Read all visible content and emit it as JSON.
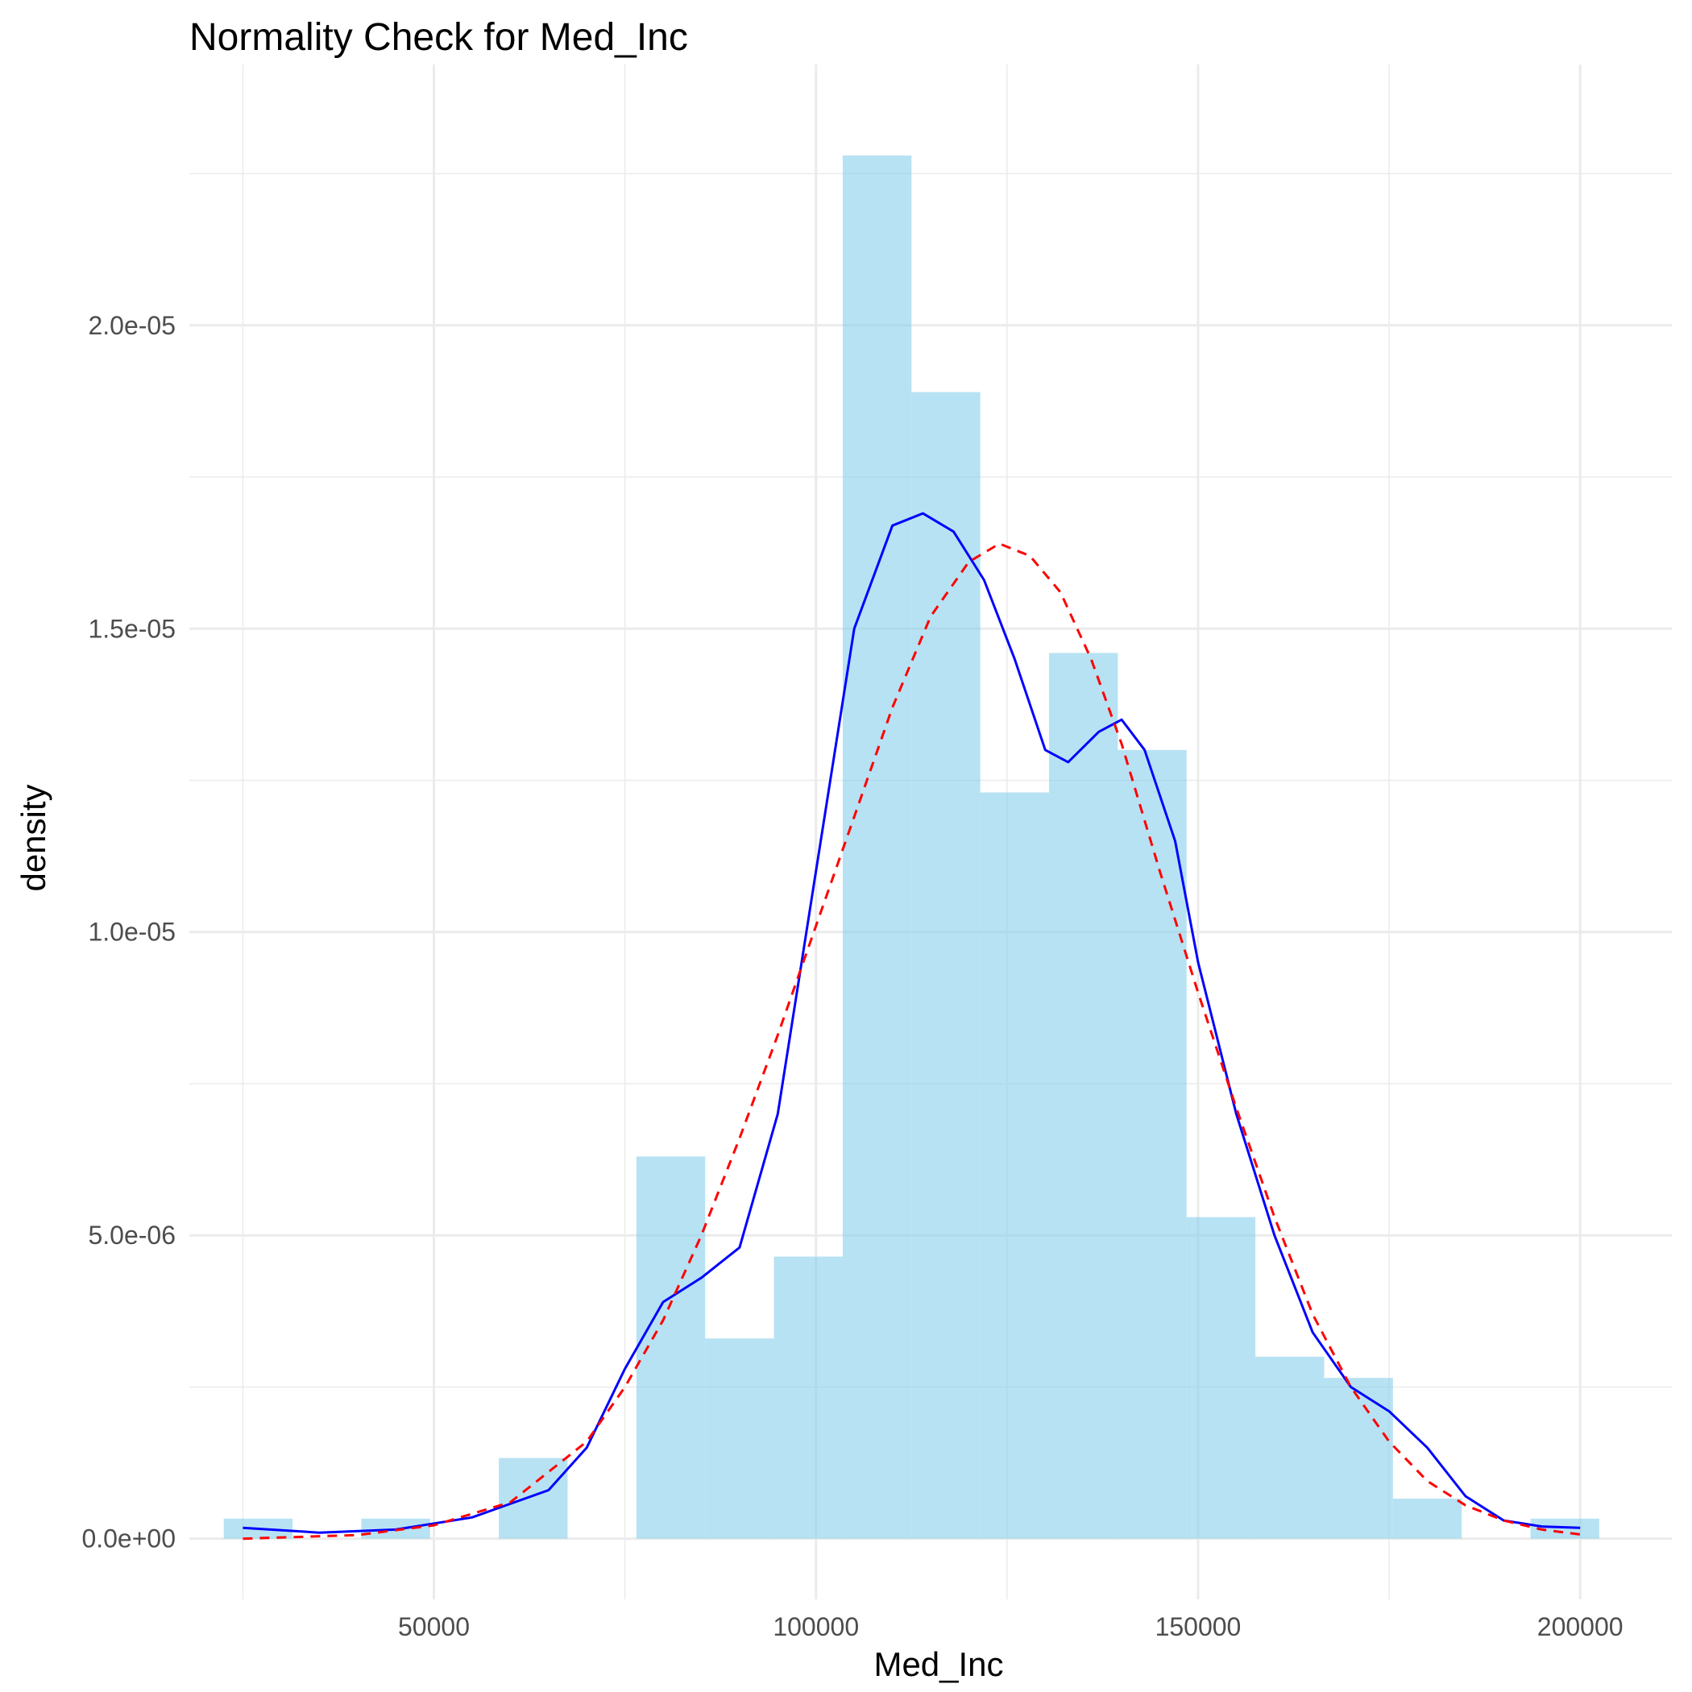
{
  "chart_data": {
    "type": "bar",
    "title": "Normality Check for Med_Inc",
    "xlabel": "Med_Inc",
    "ylabel": "density",
    "xlim": [
      18000,
      212000
    ],
    "ylim": [
      -1e-06,
      2.43e-05
    ],
    "x_ticks": [
      50000,
      100000,
      150000,
      200000
    ],
    "x_tick_labels": [
      "50000",
      "100000",
      "150000",
      "200000"
    ],
    "y_ticks": [
      0,
      5e-06,
      1e-05,
      1.5e-05,
      2e-05
    ],
    "y_tick_labels": [
      "0.0e+00",
      "5.0e-06",
      "1.0e-05",
      "1.5e-05",
      "2.0e-05"
    ],
    "grid": true,
    "histogram": {
      "fill_color": "#87CEEB",
      "bins": [
        {
          "x0": 22500,
          "x1": 31500,
          "density": 3.3e-07
        },
        {
          "x0": 31500,
          "x1": 40500,
          "density": 0
        },
        {
          "x0": 40500,
          "x1": 49500,
          "density": 3.3e-07
        },
        {
          "x0": 49500,
          "x1": 58500,
          "density": 0
        },
        {
          "x0": 58500,
          "x1": 67500,
          "density": 1.33e-06
        },
        {
          "x0": 67500,
          "x1": 76500,
          "density": 0
        },
        {
          "x0": 76500,
          "x1": 85500,
          "density": 6.3e-06
        },
        {
          "x0": 85500,
          "x1": 94500,
          "density": 3.3e-06
        },
        {
          "x0": 94500,
          "x1": 103500,
          "density": 4.65e-06
        },
        {
          "x0": 103500,
          "x1": 112500,
          "density": 2.28e-05
        },
        {
          "x0": 112500,
          "x1": 121500,
          "density": 1.89e-05
        },
        {
          "x0": 121500,
          "x1": 130500,
          "density": 1.23e-05
        },
        {
          "x0": 130500,
          "x1": 139500,
          "density": 1.46e-05
        },
        {
          "x0": 139500,
          "x1": 148500,
          "density": 1.3e-05
        },
        {
          "x0": 148500,
          "x1": 157500,
          "density": 5.3e-06
        },
        {
          "x0": 157500,
          "x1": 166500,
          "density": 3e-06
        },
        {
          "x0": 166500,
          "x1": 175500,
          "density": 2.65e-06
        },
        {
          "x0": 175500,
          "x1": 184500,
          "density": 6.6e-07
        },
        {
          "x0": 184500,
          "x1": 193500,
          "density": 0
        },
        {
          "x0": 193500,
          "x1": 202500,
          "density": 3.3e-07
        }
      ]
    },
    "series": [
      {
        "type": "line",
        "color": "#0000FF",
        "style": "solid",
        "points": [
          [
            25000,
            1.8e-07
          ],
          [
            35000,
            1e-07
          ],
          [
            45000,
            1.5e-07
          ],
          [
            55000,
            3.5e-07
          ],
          [
            65000,
            8e-07
          ],
          [
            70000,
            1.5e-06
          ],
          [
            75000,
            2.8e-06
          ],
          [
            80000,
            3.9e-06
          ],
          [
            85000,
            4.3e-06
          ],
          [
            90000,
            4.8e-06
          ],
          [
            95000,
            7e-06
          ],
          [
            100000,
            1.1e-05
          ],
          [
            105000,
            1.5e-05
          ],
          [
            110000,
            1.67e-05
          ],
          [
            114000,
            1.69e-05
          ],
          [
            118000,
            1.66e-05
          ],
          [
            122000,
            1.58e-05
          ],
          [
            126000,
            1.45e-05
          ],
          [
            130000,
            1.3e-05
          ],
          [
            133000,
            1.28e-05
          ],
          [
            137000,
            1.33e-05
          ],
          [
            140000,
            1.35e-05
          ],
          [
            143000,
            1.3e-05
          ],
          [
            147000,
            1.15e-05
          ],
          [
            150000,
            9.5e-06
          ],
          [
            155000,
            7e-06
          ],
          [
            160000,
            5e-06
          ],
          [
            165000,
            3.4e-06
          ],
          [
            170000,
            2.5e-06
          ],
          [
            175000,
            2.1e-06
          ],
          [
            180000,
            1.5e-06
          ],
          [
            185000,
            7e-07
          ],
          [
            190000,
            3e-07
          ],
          [
            195000,
            2e-07
          ],
          [
            200000,
            1.8e-07
          ]
        ]
      },
      {
        "type": "line",
        "color": "#FF0000",
        "style": "dashed",
        "points": [
          [
            25000,
            0
          ],
          [
            40000,
            6e-08
          ],
          [
            50000,
            2.2e-07
          ],
          [
            60000,
            6e-07
          ],
          [
            70000,
            1.6e-06
          ],
          [
            75000,
            2.5e-06
          ],
          [
            80000,
            3.6e-06
          ],
          [
            85000,
            5e-06
          ],
          [
            90000,
            6.6e-06
          ],
          [
            95000,
            8.3e-06
          ],
          [
            100000,
            1.01e-05
          ],
          [
            105000,
            1.19e-05
          ],
          [
            110000,
            1.37e-05
          ],
          [
            115000,
            1.52e-05
          ],
          [
            120000,
            1.61e-05
          ],
          [
            124000,
            1.64e-05
          ],
          [
            128000,
            1.62e-05
          ],
          [
            132000,
            1.56e-05
          ],
          [
            136000,
            1.45e-05
          ],
          [
            140000,
            1.31e-05
          ],
          [
            145000,
            1.1e-05
          ],
          [
            150000,
            9e-06
          ],
          [
            155000,
            7.1e-06
          ],
          [
            160000,
            5.3e-06
          ],
          [
            165000,
            3.7e-06
          ],
          [
            170000,
            2.5e-06
          ],
          [
            175000,
            1.6e-06
          ],
          [
            180000,
            9.5e-07
          ],
          [
            185000,
            5.5e-07
          ],
          [
            190000,
            3e-07
          ],
          [
            195000,
            1.5e-07
          ],
          [
            200000,
            7e-08
          ]
        ]
      }
    ]
  }
}
